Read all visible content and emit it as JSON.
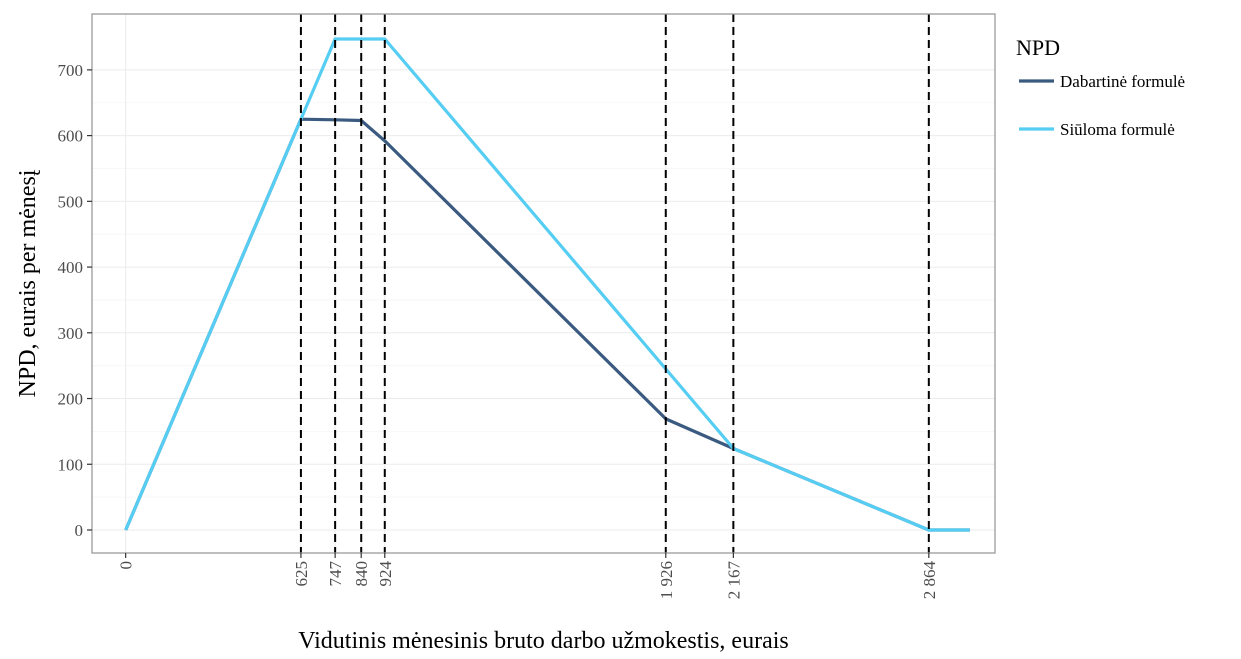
{
  "chart_data": {
    "type": "line",
    "xlabel": "Vidutinis mėnesinis bruto darbo užmokestis, eurais",
    "ylabel": "NPD, eurais per mėnesį",
    "xlim": [
      -120,
      3100
    ],
    "ylim": [
      -35,
      785
    ],
    "x_ticks": [
      0,
      625,
      747,
      840,
      924,
      1926,
      2167,
      2864
    ],
    "x_tick_labels": [
      "0",
      "625",
      "747",
      "840",
      "924",
      "1 926",
      "2 167",
      "2 864"
    ],
    "y_ticks": [
      0,
      100,
      200,
      300,
      400,
      500,
      600,
      700
    ],
    "y_tick_labels": [
      "0",
      "100",
      "200",
      "300",
      "400",
      "500",
      "600",
      "700"
    ],
    "vlines": [
      625,
      747,
      840,
      924,
      1926,
      2167,
      2864
    ],
    "grid": true,
    "legend": {
      "title": "NPD",
      "position": "right"
    },
    "series": [
      {
        "name": "Dabartinė formulė",
        "color": "#3b5a80",
        "x": [
          0,
          625,
          747,
          840,
          924,
          1926,
          2167,
          2864,
          3010
        ],
        "y": [
          0,
          625,
          624,
          623,
          592,
          169,
          124,
          0,
          0
        ]
      },
      {
        "name": "Siūloma formulė",
        "color": "#56cdf2",
        "x": [
          0,
          625,
          747,
          840,
          924,
          1926,
          2167,
          2864,
          3010
        ],
        "y": [
          0,
          625,
          747,
          747,
          747,
          245,
          124,
          0,
          0
        ]
      }
    ]
  }
}
